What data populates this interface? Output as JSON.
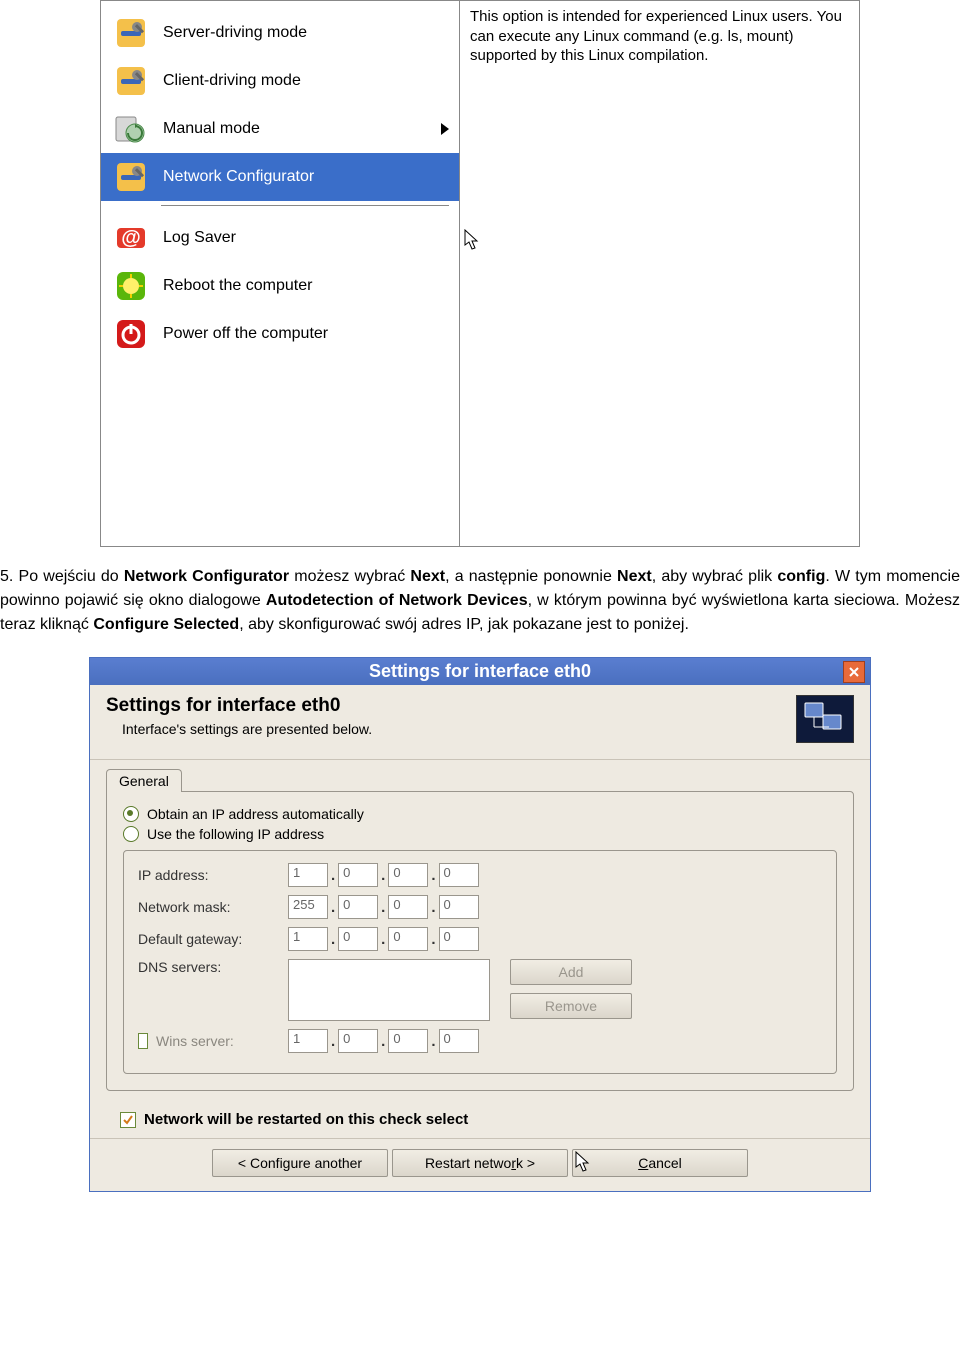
{
  "menu": {
    "items": [
      {
        "label": "Server-driving mode",
        "icon": "tools"
      },
      {
        "label": "Client-driving mode",
        "icon": "tools"
      },
      {
        "label": "Manual mode",
        "icon": "cdcycle",
        "submenu": true
      },
      {
        "label": "Network Configurator",
        "icon": "tools",
        "selected": true
      }
    ],
    "after_divider": [
      {
        "label": "Log Saver",
        "icon": "at"
      },
      {
        "label": "Reboot the computer",
        "icon": "reboot"
      },
      {
        "label": "Power off the computer",
        "icon": "power"
      }
    ],
    "description": "This option is intended for experienced Linux users. You can execute any Linux command (e.g. ls, mount) supported by this Linux compilation."
  },
  "paragraph": {
    "prefix": "5. Po wejściu do ",
    "b1": "Network Configurator",
    "mid1": " możesz wybrać ",
    "b2": "Next",
    "mid2": ", a następnie ponownie ",
    "b3": "Next",
    "mid3": ", aby wybrać plik ",
    "b4": "config",
    "mid4": ". W tym momencie powinno pojawić się okno dialogowe ",
    "b5": "Autodetection of Network Devices",
    "mid5": ", w którym powinna być wyświetlona karta sieciowa. Możesz teraz kliknąć ",
    "b6": "Configure Selected",
    "mid6": ", aby skonfigurować swój adres IP, jak pokazane jest to poniżej."
  },
  "dialog": {
    "title": "Settings for interface eth0",
    "header_title": "Settings for interface eth0",
    "header_sub": "Interface's settings are presented below.",
    "tab_label": "General",
    "radio_auto": "Obtain an IP address automatically",
    "radio_manual": "Use the following IP address",
    "fields": {
      "ip_label": "IP address:",
      "ip": [
        "1",
        "0",
        "0",
        "0"
      ],
      "mask_label": "Network mask:",
      "mask": [
        "255",
        "0",
        "0",
        "0"
      ],
      "gw_label": "Default gateway:",
      "gw": [
        "1",
        "0",
        "0",
        "0"
      ],
      "dns_label": "DNS servers:",
      "wins_label": "Wins server:",
      "wins": [
        "1",
        "0",
        "0",
        "0"
      ]
    },
    "buttons": {
      "add": "Add",
      "remove": "Remove"
    },
    "checkbox_label": "Network will be restarted on this check select",
    "bottom": {
      "configure": "Configure another",
      "configure_pre": "<",
      "restart": "Restart netwo",
      "restart_post": "k >",
      "restart_under": "r",
      "cancel": "ancel",
      "cancel_under": "C"
    }
  },
  "colors": {
    "selection_bg": "#3a6ec9",
    "titlebar_bg": "#4a6fbf",
    "dialog_bg": "#eeeae1",
    "close_bg": "#e86a3a",
    "radio_green": "#5a7a2a"
  }
}
